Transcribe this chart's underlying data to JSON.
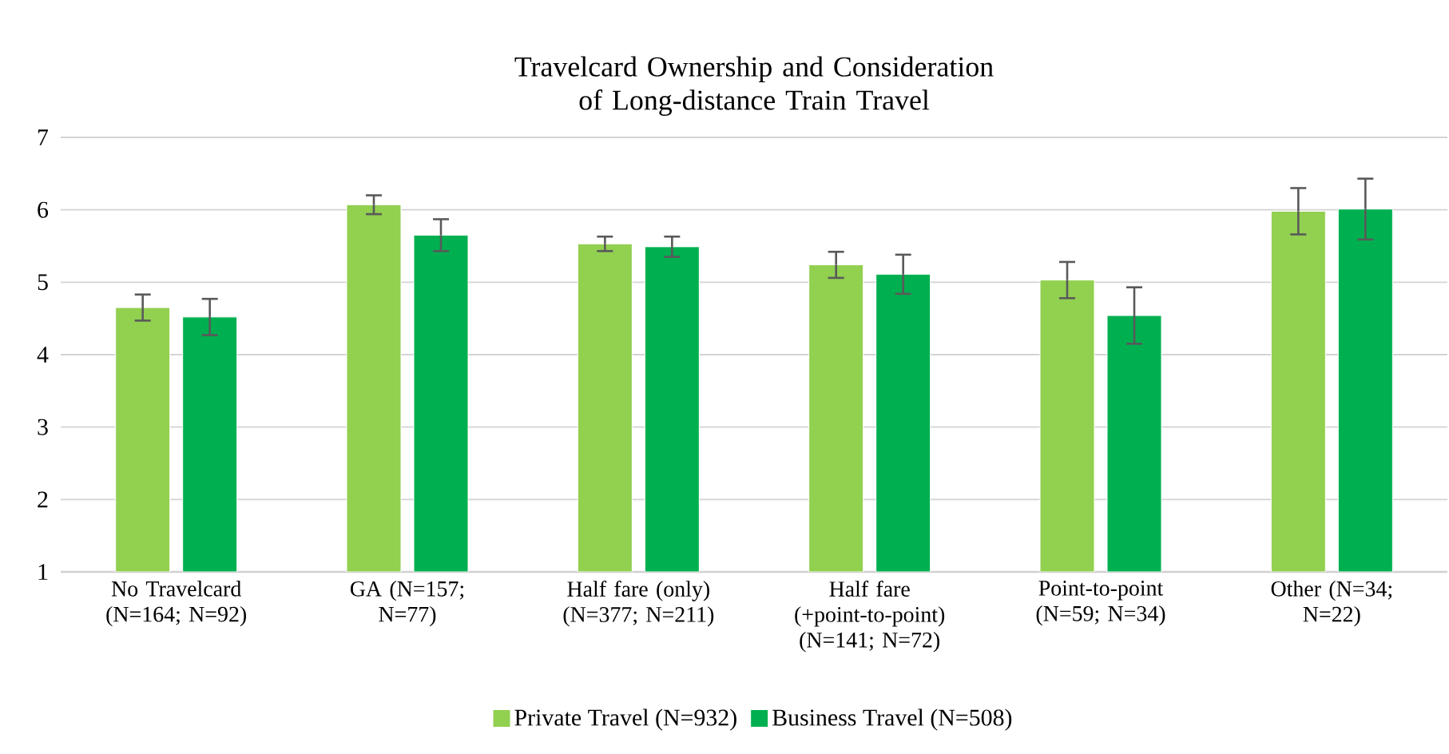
{
  "chart_data": {
    "type": "bar",
    "title": "Travelcard Ownership and Consideration of Long-distance Train Travel",
    "categories": [
      "No Travelcard (N=164; N=92)",
      "GA (N=157; N=77)",
      "Half fare (only) (N=377; N=211)",
      "Half fare (+point-to-point) (N=141; N=72)",
      "Point-to-point (N=59; N=34)",
      "Other (N=34; N=22)"
    ],
    "series": [
      {
        "name": "Private Travel (N=932)",
        "color": "#92d050",
        "values": [
          4.65,
          6.07,
          5.53,
          5.24,
          5.03,
          5.98
        ],
        "errors": [
          0.18,
          0.13,
          0.1,
          0.18,
          0.25,
          0.32
        ]
      },
      {
        "name": "Business Travel (N=508)",
        "color": "#00b050",
        "values": [
          4.52,
          5.65,
          5.49,
          5.11,
          4.54,
          6.01
        ],
        "errors": [
          0.25,
          0.22,
          0.14,
          0.27,
          0.39,
          0.42
        ]
      }
    ],
    "ylim": [
      1,
      7
    ],
    "yticks": [
      1,
      2,
      3,
      4,
      5,
      6,
      7
    ],
    "grid": "y",
    "legend": "bottom"
  }
}
